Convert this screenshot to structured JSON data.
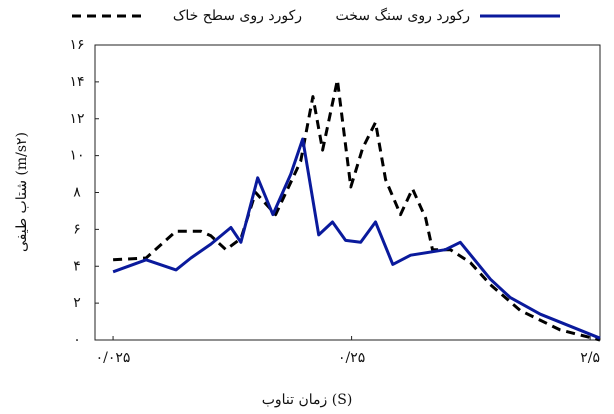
{
  "chart_data": {
    "type": "line",
    "xlabel": "زمان تناوب (S)",
    "ylabel": "شتاب طیفی (m/s۲)",
    "xscale": "log",
    "xlim": [
      0.021,
      2.75
    ],
    "xticks": [
      {
        "value": 0.025,
        "label": "۰/۰۲۵"
      },
      {
        "value": 0.25,
        "label": "۰/۲۵"
      },
      {
        "value": 2.5,
        "label": "۲/۵"
      }
    ],
    "ylim": [
      0,
      16
    ],
    "yticks": [
      {
        "value": 0,
        "label": "۰"
      },
      {
        "value": 2,
        "label": "۲"
      },
      {
        "value": 4,
        "label": "۴"
      },
      {
        "value": 6,
        "label": "۶"
      },
      {
        "value": 8,
        "label": "۸"
      },
      {
        "value": 10,
        "label": "۱۰"
      },
      {
        "value": 12,
        "label": "۱۲"
      },
      {
        "value": 14,
        "label": "۱۴"
      },
      {
        "value": 16,
        "label": "۱۶"
      }
    ],
    "series": [
      {
        "name": "رکورد روی سطح خاک",
        "color": "#000000",
        "line_style": "dashed",
        "x": [
          0.025,
          0.0344,
          0.0459,
          0.0583,
          0.0643,
          0.0743,
          0.0859,
          0.099,
          0.12,
          0.153,
          0.172,
          0.189,
          0.218,
          0.248,
          0.278,
          0.315,
          0.347,
          0.401,
          0.45,
          0.511,
          0.546,
          0.649,
          0.787,
          0.955,
          1.274,
          1.871,
          2.75
        ],
        "values": [
          4.35,
          4.45,
          5.9,
          5.9,
          5.65,
          4.9,
          5.5,
          8.0,
          6.8,
          9.7,
          13.2,
          10.3,
          14.1,
          8.3,
          10.4,
          11.8,
          8.7,
          6.8,
          8.2,
          6.6,
          4.9,
          4.9,
          4.2,
          3.0,
          1.6,
          0.55,
          0
        ]
      },
      {
        "name": "رکورد روی سنگ سخت",
        "color": "#0a1a9c",
        "line_style": "solid",
        "x": [
          0.025,
          0.0344,
          0.0459,
          0.053,
          0.0643,
          0.078,
          0.0859,
          0.101,
          0.117,
          0.139,
          0.156,
          0.182,
          0.208,
          0.236,
          0.273,
          0.315,
          0.372,
          0.442,
          0.618,
          0.714,
          0.955,
          1.157,
          1.545,
          2.75
        ],
        "values": [
          3.7,
          4.35,
          3.8,
          4.45,
          5.2,
          6.1,
          5.3,
          8.8,
          6.8,
          9.0,
          10.9,
          5.7,
          6.4,
          5.4,
          5.3,
          6.4,
          4.1,
          4.6,
          4.9,
          5.3,
          3.3,
          2.3,
          1.4,
          0.1
        ]
      }
    ]
  }
}
